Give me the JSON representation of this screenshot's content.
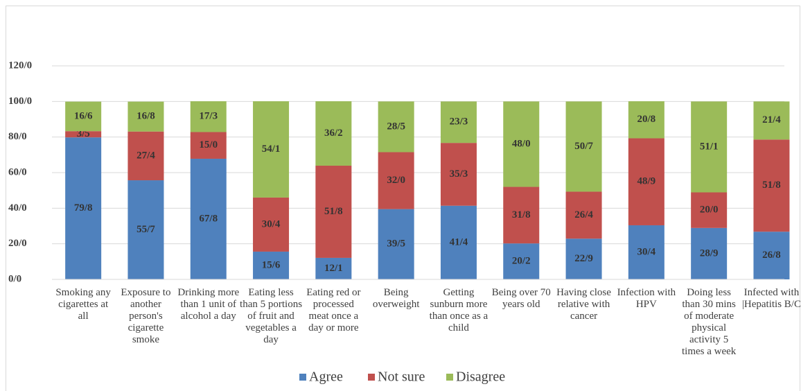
{
  "chart_data": {
    "type": "stacked_bar",
    "categories": [
      "Smoking any cigarettes at all",
      "Exposure to another person's cigarette smoke",
      "Drinking more than 1 unit of alcohol a day",
      "Eating less than 5 portions of fruit and vegetables a day",
      "Eating red or processed meat once a day or more",
      "Being overweight",
      "Getting sunburn more than once as a child",
      "Being over 70 years old",
      "Having close relative with cancer",
      "Infection with HPV",
      "Doing less than 30 mins of moderate physical activity 5 times a week",
      "Infected with |Hepatitis B/C"
    ],
    "series": [
      {
        "name": "Agree",
        "color": "#4f81bd",
        "values": [
          79.8,
          55.7,
          67.8,
          15.6,
          12.1,
          39.5,
          41.4,
          20.2,
          22.9,
          30.4,
          28.9,
          26.8
        ],
        "value_labels": [
          "79/8",
          "55/7",
          "67/8",
          "15/6",
          "12/1",
          "39/5",
          "41/4",
          "20/2",
          "22/9",
          "30/4",
          "28/9",
          "26/8"
        ]
      },
      {
        "name": "Not sure",
        "color": "#c0504d",
        "values": [
          3.5,
          27.4,
          15.0,
          30.4,
          51.8,
          32.0,
          35.3,
          31.8,
          26.4,
          48.9,
          20.0,
          51.8
        ],
        "value_labels": [
          "3/5",
          "27/4",
          "15/0",
          "30/4",
          "51/8",
          "32/0",
          "35/3",
          "31/8",
          "26/4",
          "48/9",
          "20/0",
          "51/8"
        ]
      },
      {
        "name": "Disagree",
        "color": "#9bbb59",
        "values": [
          16.6,
          16.8,
          17.3,
          54.1,
          36.2,
          28.5,
          23.3,
          48.0,
          50.7,
          20.8,
          51.1,
          21.4
        ],
        "value_labels": [
          "16/6",
          "16/8",
          "17/3",
          "54/1",
          "36/2",
          "28/5",
          "23/3",
          "48/0",
          "50/7",
          "20/8",
          "51/1",
          "21/4"
        ]
      }
    ],
    "ylim": [
      0,
      120
    ],
    "yticks": [
      {
        "value": 0,
        "label": "0/0"
      },
      {
        "value": 20,
        "label": "20/0"
      },
      {
        "value": 40,
        "label": "40/0"
      },
      {
        "value": 60,
        "label": "60/0"
      },
      {
        "value": 80,
        "label": "80/0"
      },
      {
        "value": 100,
        "label": "100/0"
      },
      {
        "value": 120,
        "label": "120/0"
      }
    ],
    "grid": true,
    "legend": "bottom"
  }
}
